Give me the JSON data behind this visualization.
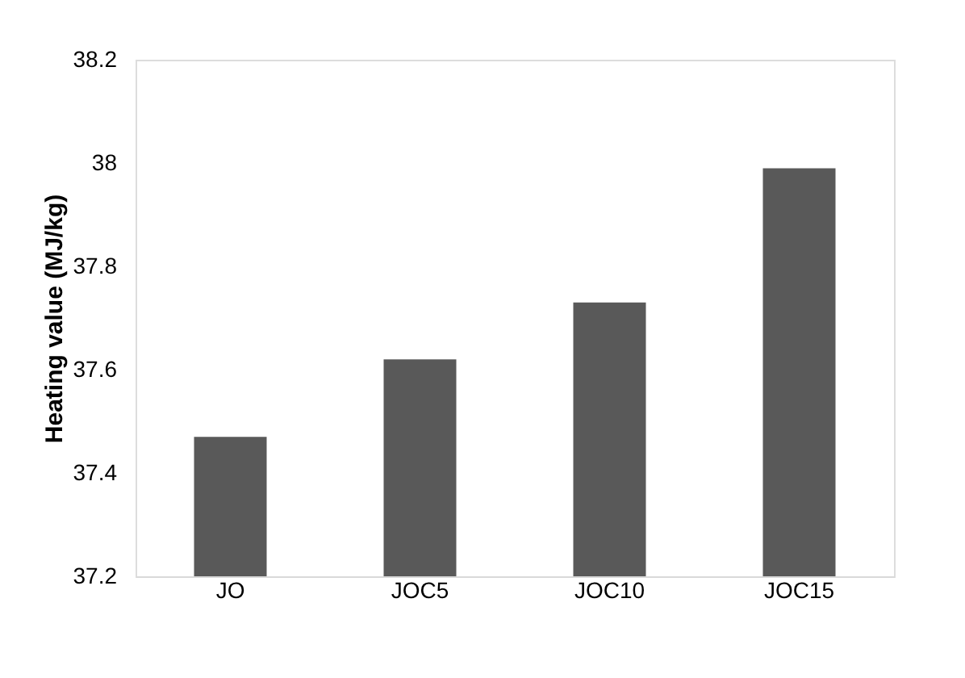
{
  "chart_data": {
    "type": "bar",
    "ylabel": "Heating value (MJ/kg)",
    "categories": [
      "JO",
      "JOC5",
      "JOC10",
      "JOC15"
    ],
    "values": [
      37.47,
      37.62,
      37.73,
      37.99
    ],
    "color": "#595959",
    "ylim": [
      37.2,
      38.2
    ],
    "yticks": [
      37.2,
      37.4,
      37.6,
      37.8,
      38,
      38.2
    ],
    "grid": false
  }
}
